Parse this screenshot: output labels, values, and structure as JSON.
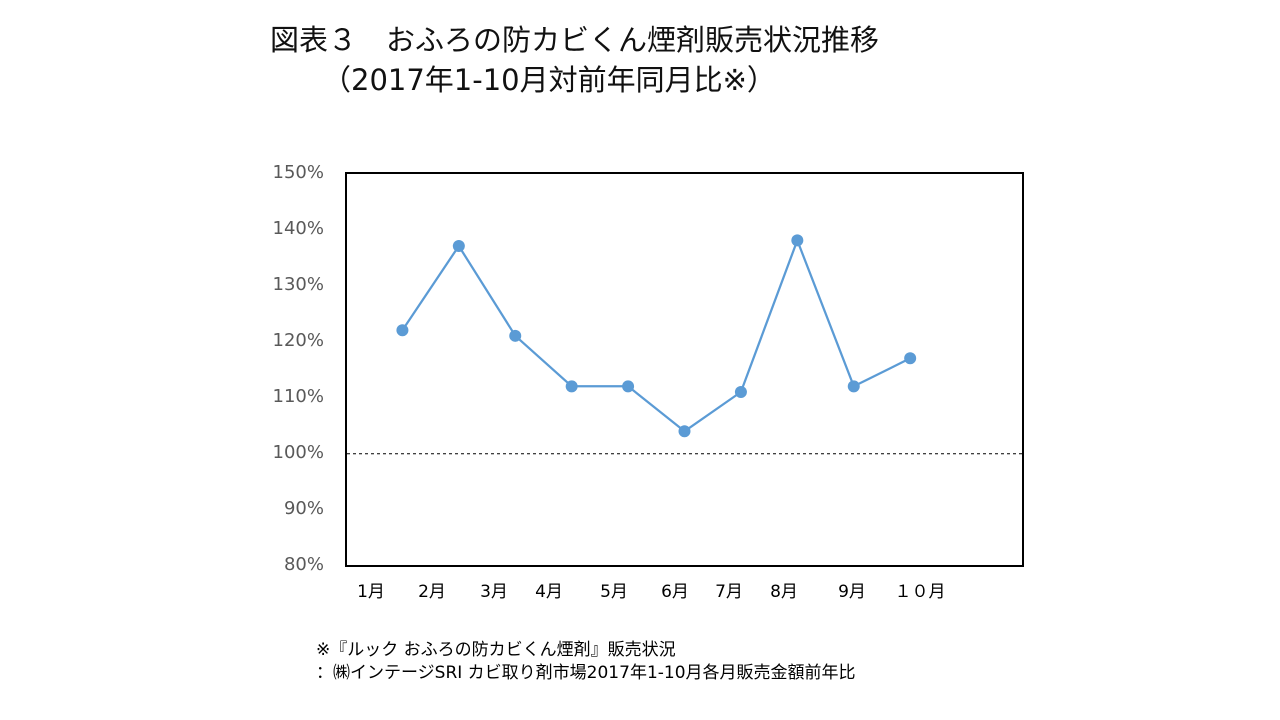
{
  "chart_data": {
    "type": "line",
    "title": "図表３　おふろの防カビくん煙剤販売状況推移",
    "subtitle": "（2017年1-10月対前年同月比※）",
    "xlabel": "",
    "ylabel": "",
    "categories": [
      "1月",
      "2月",
      "3月",
      "4月",
      "5月",
      "6月",
      "7月",
      "8月",
      "9月",
      "１０月"
    ],
    "series": [
      {
        "values": [
          122,
          137,
          121,
          112,
          112,
          104,
          111,
          138,
          112,
          117
        ]
      }
    ],
    "ylim": [
      80,
      150
    ],
    "yticks": [
      80,
      90,
      100,
      110,
      120,
      130,
      140,
      150
    ],
    "ytick_labels": [
      "80%",
      "90%",
      "100%",
      "110%",
      "120%",
      "130%",
      "140%",
      "150%"
    ],
    "reference_line": {
      "y": 100,
      "style": "dashed"
    },
    "grid": false,
    "legend": "none",
    "marker": "circle",
    "line_color": "#5b9bd5"
  },
  "footnotes": [
    "※『ルック おふろの防カビくん煙剤』販売状況",
    "：㈱インテージSRI カビ取り剤市場2017年1-10月各月販売金額前年比"
  ]
}
